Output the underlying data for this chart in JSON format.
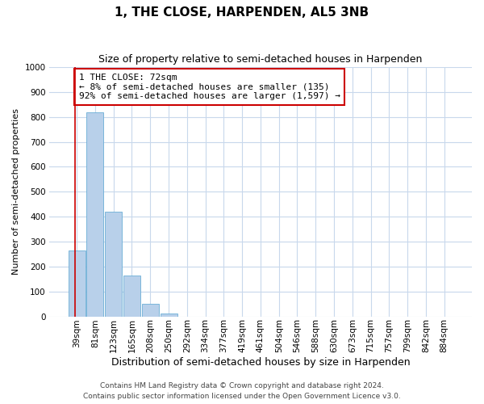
{
  "title": "1, THE CLOSE, HARPENDEN, AL5 3NB",
  "subtitle": "Size of property relative to semi-detached houses in Harpenden",
  "xlabel": "Distribution of semi-detached houses by size in Harpenden",
  "ylabel": "Number of semi-detached properties",
  "bin_labels": [
    "39sqm",
    "81sqm",
    "123sqm",
    "165sqm",
    "208sqm",
    "250sqm",
    "292sqm",
    "334sqm",
    "377sqm",
    "419sqm",
    "461sqm",
    "504sqm",
    "546sqm",
    "588sqm",
    "630sqm",
    "673sqm",
    "715sqm",
    "757sqm",
    "799sqm",
    "842sqm",
    "884sqm"
  ],
  "bar_heights": [
    265,
    820,
    420,
    165,
    50,
    12,
    0,
    0,
    0,
    0,
    0,
    0,
    0,
    0,
    0,
    0,
    0,
    0,
    0,
    0,
    0
  ],
  "bar_color": "#b8d0ea",
  "bar_edge_color": "#6baed6",
  "property_line_color": "#cc0000",
  "property_line_x": -0.08,
  "annotation_text": "1 THE CLOSE: 72sqm\n← 8% of semi-detached houses are smaller (135)\n92% of semi-detached houses are larger (1,597) →",
  "annotation_box_color": "#ffffff",
  "annotation_box_edge": "#cc0000",
  "ylim": [
    0,
    1000
  ],
  "yticks": [
    0,
    100,
    200,
    300,
    400,
    500,
    600,
    700,
    800,
    900,
    1000
  ],
  "footer_line1": "Contains HM Land Registry data © Crown copyright and database right 2024.",
  "footer_line2": "Contains public sector information licensed under the Open Government Licence v3.0.",
  "background_color": "#ffffff",
  "grid_color": "#c8d8ec",
  "title_fontsize": 11,
  "subtitle_fontsize": 9,
  "ylabel_fontsize": 8,
  "xlabel_fontsize": 9,
  "tick_fontsize": 7.5,
  "annotation_fontsize": 8,
  "footer_fontsize": 6.5
}
